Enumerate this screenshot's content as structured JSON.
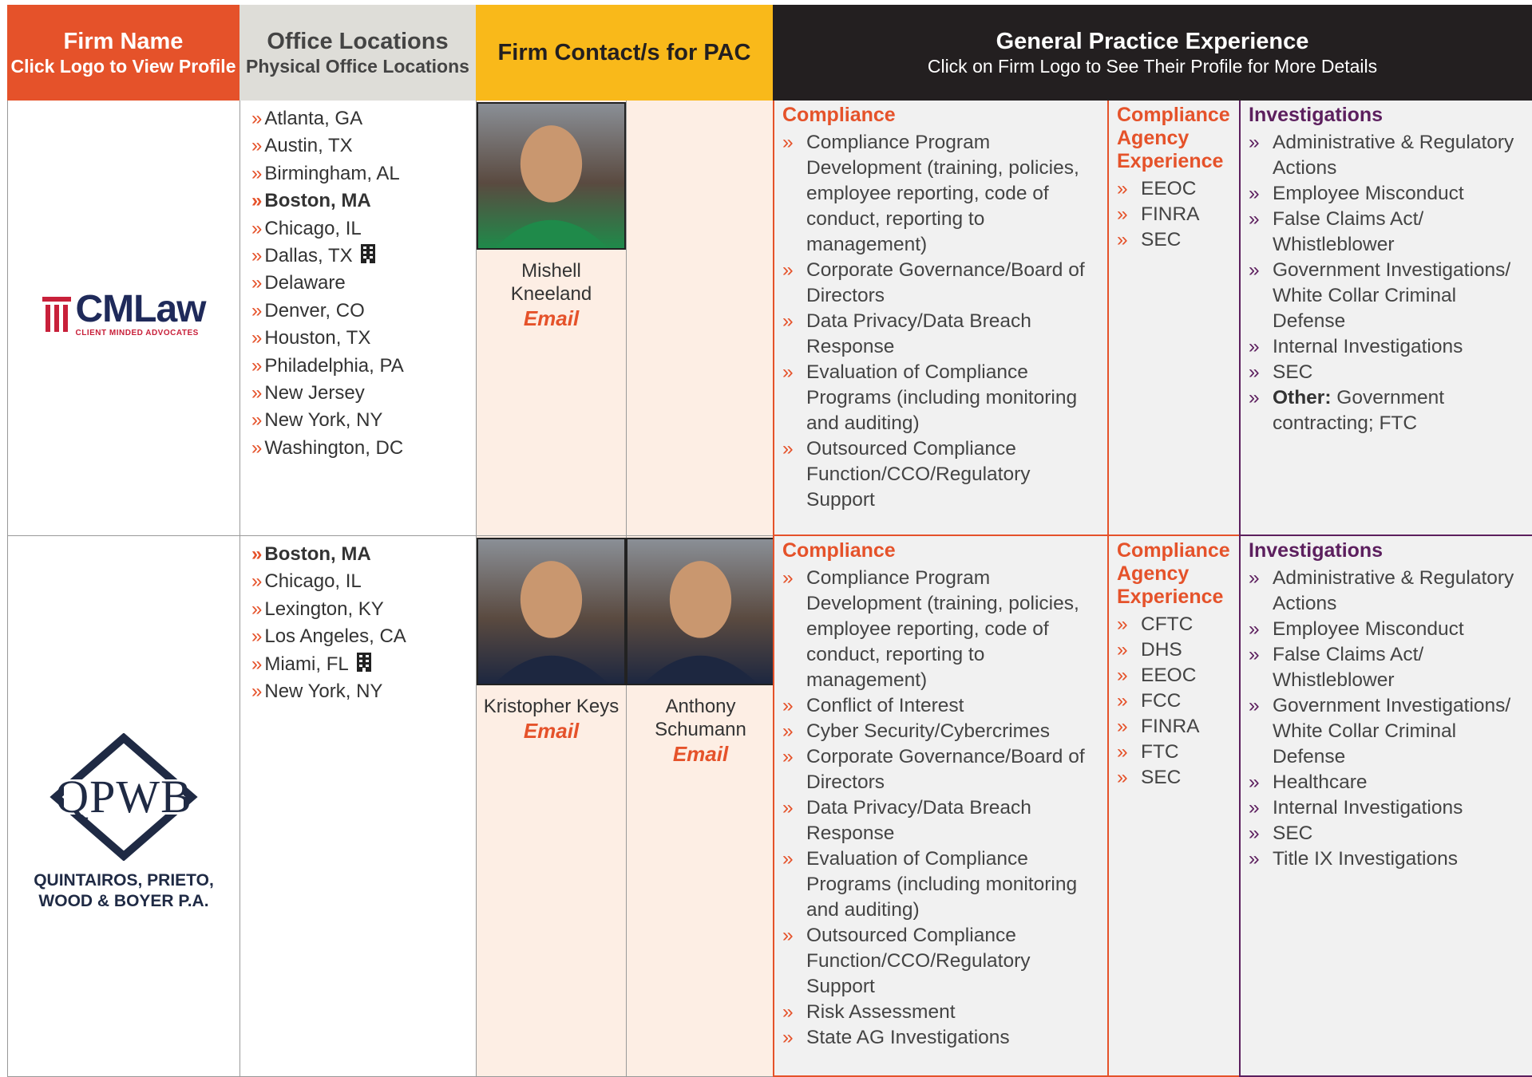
{
  "header": {
    "firm_name": "Firm Name",
    "firm_name_sub": "Click Logo to View Profile",
    "office_locations": "Office Locations",
    "office_locations_sub": "Physical Office Locations",
    "contacts": "Firm Contact/s for PAC",
    "practice": "General Practice Experience",
    "practice_sub": "Click on Firm Logo to See Their Profile for More Details"
  },
  "firms": [
    {
      "logo": {
        "name": "CMLaw",
        "tagline": "CLIENT MINDED ADVOCATES"
      },
      "offices": [
        {
          "name": "Atlanta, GA"
        },
        {
          "name": "Austin, TX"
        },
        {
          "name": "Birmingham, AL"
        },
        {
          "name": "Boston, MA",
          "bold": true
        },
        {
          "name": "Chicago, IL"
        },
        {
          "name": "Dallas, TX",
          "main": true
        },
        {
          "name": "Delaware"
        },
        {
          "name": "Denver, CO"
        },
        {
          "name": "Houston, TX"
        },
        {
          "name": "Philadelphia, PA"
        },
        {
          "name": "New Jersey"
        },
        {
          "name": "New York, NY"
        },
        {
          "name": "Washington, DC"
        }
      ],
      "contacts": [
        {
          "name": "Mishell Kneeland",
          "link": "Email"
        }
      ],
      "compliance": {
        "title": "Compliance",
        "items": [
          "Compliance Program Development (training, policies, employee reporting, code of conduct, reporting to management)",
          "Corporate Governance/Board of Directors",
          "Data Privacy/Data Breach Response",
          "Evaluation of Compliance Programs (including monitoring and auditing)",
          "Outsourced Compliance Function/CCO/Regulatory Support"
        ]
      },
      "agency": {
        "title": "Compliance Agency Experience",
        "items": [
          "EEOC",
          "FINRA",
          "SEC"
        ]
      },
      "investigations": {
        "title": "Investigations",
        "items": [
          "Administrative & Regulatory Actions",
          "Employee Misconduct",
          "False Claims Act/ Whistleblower",
          "Government Investigations/ White Collar Criminal Defense",
          "Internal Investigations",
          "SEC",
          {
            "bold": "Other:",
            "text": " Government contracting; FTC"
          }
        ]
      }
    },
    {
      "logo": {
        "name": "QPWB",
        "tagline": "QUINTAIROS, PRIETO, WOOD & BOYER P.A."
      },
      "offices": [
        {
          "name": "Boston, MA",
          "bold": true
        },
        {
          "name": "Chicago, IL"
        },
        {
          "name": "Lexington, KY"
        },
        {
          "name": "Los Angeles, CA"
        },
        {
          "name": "Miami, FL",
          "main": true
        },
        {
          "name": "New York, NY"
        }
      ],
      "contacts": [
        {
          "name": "Kristopher Keys",
          "link": "Email"
        },
        {
          "name": "Anthony Schumann",
          "link": "Email"
        }
      ],
      "compliance": {
        "title": "Compliance",
        "items": [
          "Compliance Program Development (training, policies, employee reporting, code of conduct, reporting to management)",
          "Conflict of Interest",
          "Cyber Security/Cybercrimes",
          "Corporate Governance/Board of Directors",
          "Data Privacy/Data Breach Response",
          "Evaluation of Compliance Programs (including monitoring and auditing)",
          "Outsourced Compliance Function/CCO/Regulatory Support",
          "Risk Assessment",
          "State AG Investigations"
        ]
      },
      "agency": {
        "title": "Compliance Agency Experience",
        "items": [
          "CFTC",
          "DHS",
          "EEOC",
          "FCC",
          "FINRA",
          "FTC",
          "SEC"
        ]
      },
      "investigations": {
        "title": "Investigations",
        "items": [
          "Administrative & Regulatory Actions",
          "Employee Misconduct",
          "False Claims Act/ Whistleblower",
          "Government Investigations/ White Collar Criminal Defense",
          "Healthcare",
          "Internal Investigations",
          "SEC",
          "Title IX Investigations"
        ]
      }
    }
  ]
}
